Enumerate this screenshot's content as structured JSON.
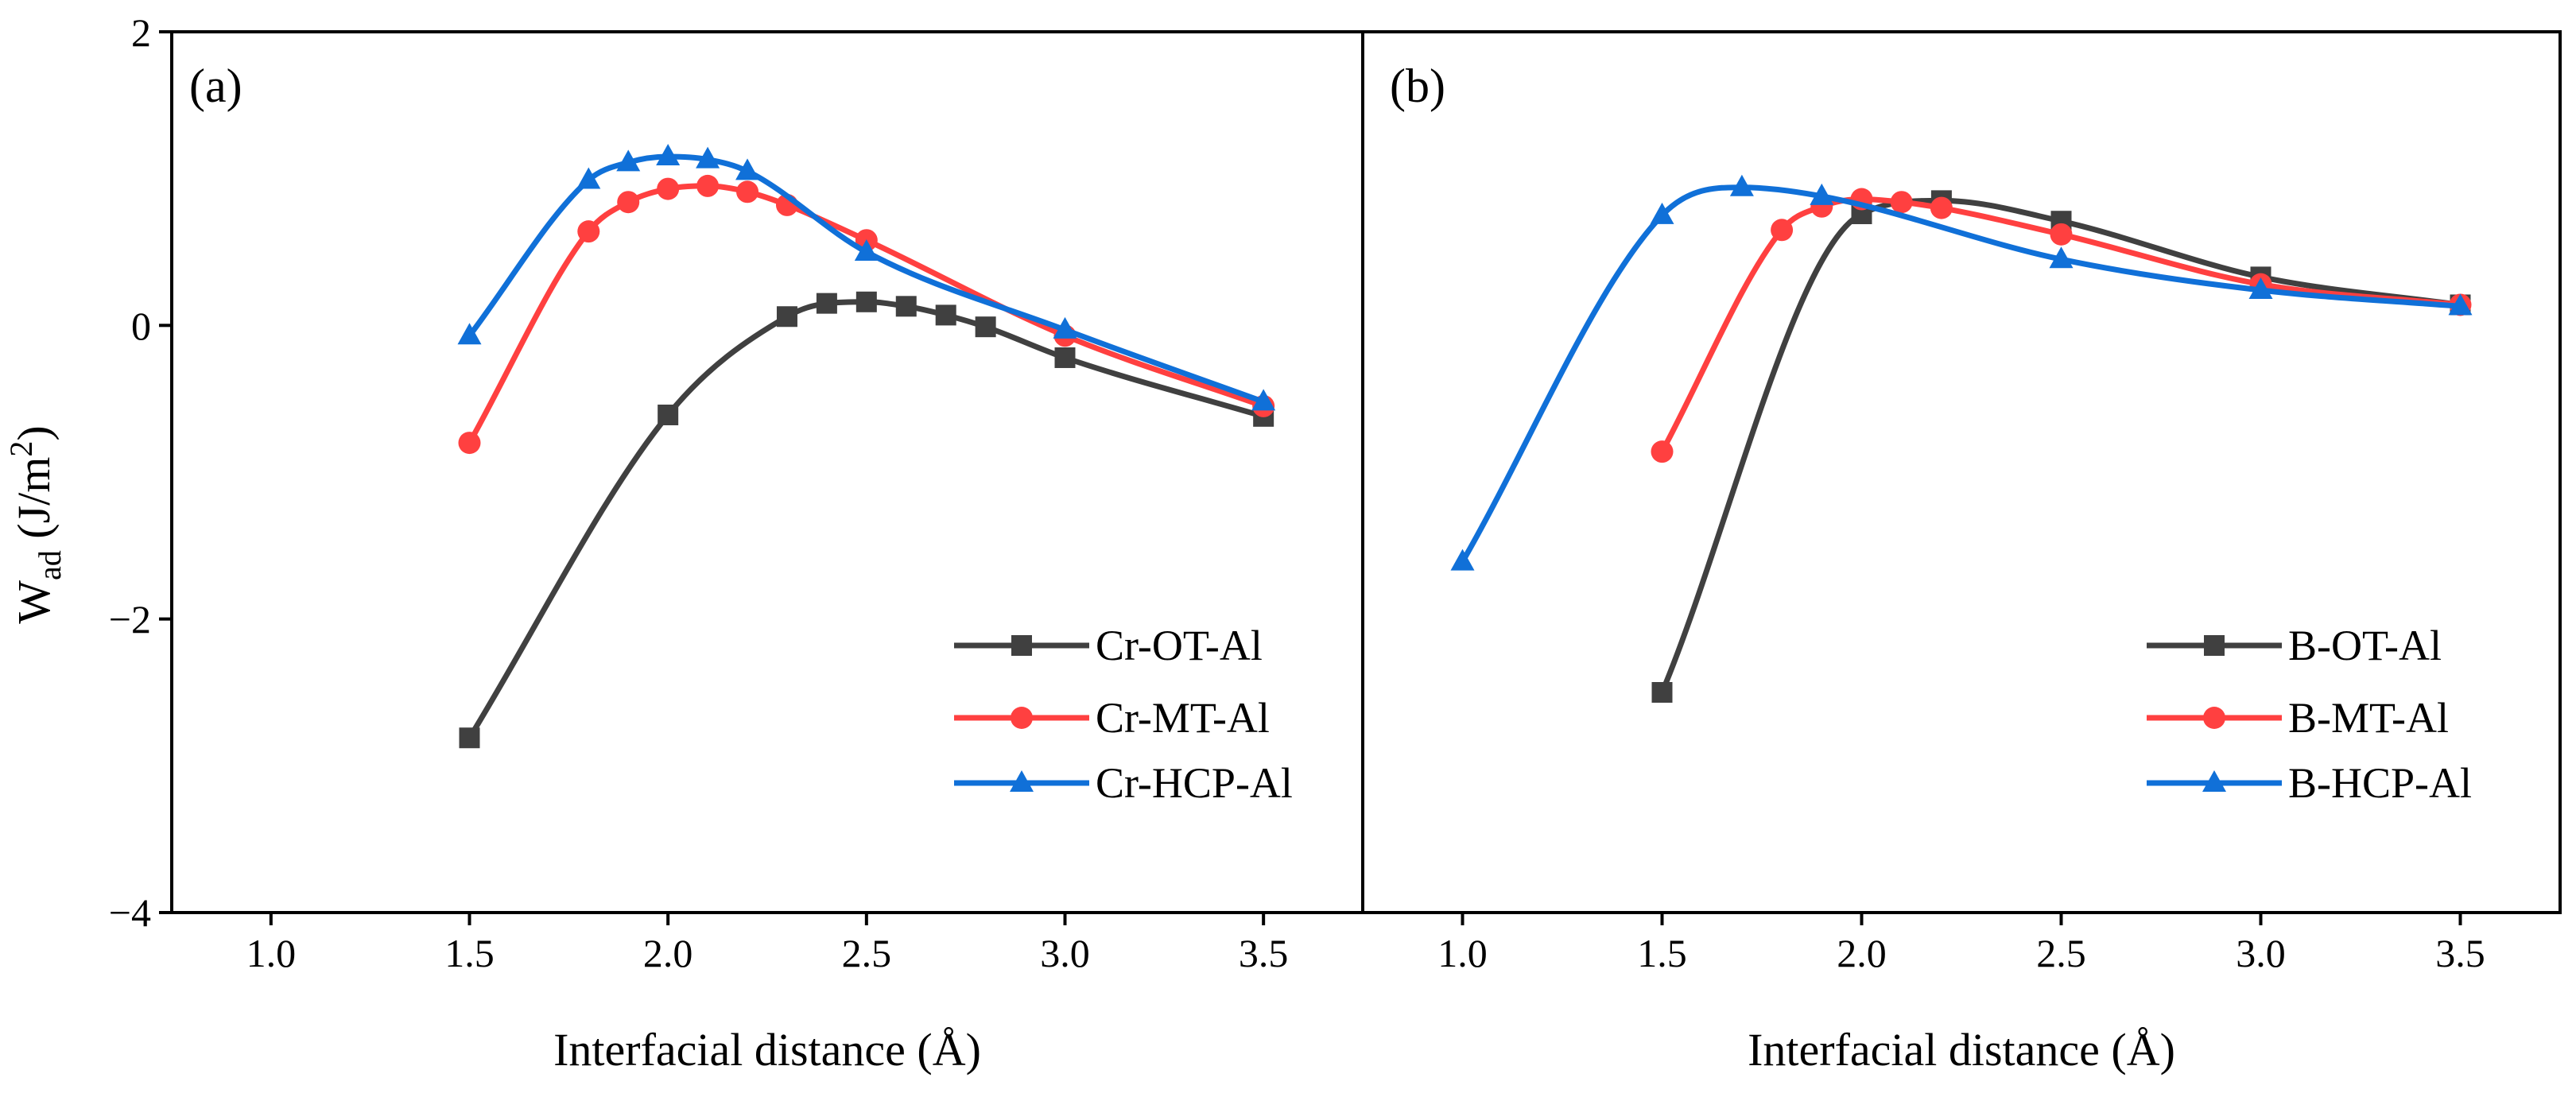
{
  "colors": {
    "ot": "#404040",
    "mt": "#ff4040",
    "hcp": "#1070d8"
  },
  "chart_data": [
    {
      "type": "line",
      "panel_label": "(a)",
      "xlabel": "Interfacial distance (Å)",
      "ylabel_main": "W",
      "ylabel_sub": "ad",
      "ylabel_unit": " (J/m",
      "ylabel_sup": "2",
      "ylabel_close": ")",
      "xlim": [
        0.75,
        3.75
      ],
      "ylim": [
        -4,
        2
      ],
      "xticks": [
        1.0,
        1.5,
        2.0,
        2.5,
        3.0,
        3.5
      ],
      "xtick_labels": [
        "1.0",
        "1.5",
        "2.0",
        "2.5",
        "3.0",
        "3.5"
      ],
      "yticks": [
        2,
        0,
        -2,
        -4
      ],
      "ytick_labels": [
        "2",
        "0",
        "−2",
        "−4"
      ],
      "legend_position": "bottom-right",
      "series": [
        {
          "name": "Cr-OT-Al",
          "color": "#404040",
          "marker": "square",
          "x": [
            1.5,
            2.0,
            2.3,
            2.4,
            2.5,
            2.6,
            2.7,
            2.8,
            3.0,
            3.5
          ],
          "y": [
            -2.81,
            -0.61,
            0.06,
            0.15,
            0.16,
            0.13,
            0.07,
            -0.01,
            -0.22,
            -0.62
          ]
        },
        {
          "name": "Cr-MT-Al",
          "color": "#ff4040",
          "marker": "circle",
          "x": [
            1.5,
            1.8,
            1.9,
            2.0,
            2.1,
            2.2,
            2.3,
            2.5,
            3.0,
            3.5
          ],
          "y": [
            -0.8,
            0.64,
            0.84,
            0.93,
            0.95,
            0.91,
            0.82,
            0.58,
            -0.07,
            -0.55
          ]
        },
        {
          "name": "Cr-HCP-Al",
          "color": "#1070d8",
          "marker": "triangle",
          "x": [
            1.5,
            1.8,
            1.9,
            2.0,
            2.1,
            2.2,
            2.5,
            3.0,
            3.5
          ],
          "y": [
            -0.07,
            0.99,
            1.11,
            1.15,
            1.13,
            1.05,
            0.5,
            -0.03,
            -0.52
          ]
        }
      ]
    },
    {
      "type": "line",
      "panel_label": "(b)",
      "xlabel": "Interfacial distance (Å)",
      "xlim": [
        0.75,
        3.75
      ],
      "ylim": [
        -4,
        2
      ],
      "xticks": [
        1.0,
        1.5,
        2.0,
        2.5,
        3.0,
        3.5
      ],
      "xtick_labels": [
        "1.0",
        "1.5",
        "2.0",
        "2.5",
        "3.0",
        "3.5"
      ],
      "legend_position": "bottom-right",
      "series": [
        {
          "name": "B-OT-Al",
          "color": "#404040",
          "marker": "square",
          "x": [
            1.5,
            2.0,
            2.2,
            2.5,
            3.0,
            3.5
          ],
          "y": [
            -2.5,
            0.76,
            0.85,
            0.71,
            0.33,
            0.14
          ]
        },
        {
          "name": "B-MT-Al",
          "color": "#ff4040",
          "marker": "circle",
          "x": [
            1.5,
            1.8,
            1.9,
            2.0,
            2.1,
            2.2,
            2.5,
            3.0,
            3.5
          ],
          "y": [
            -0.86,
            0.65,
            0.81,
            0.86,
            0.84,
            0.8,
            0.62,
            0.28,
            0.14
          ]
        },
        {
          "name": "B-HCP-Al",
          "color": "#1070d8",
          "marker": "triangle",
          "x": [
            1.0,
            1.5,
            1.7,
            1.9,
            2.5,
            3.0,
            3.5
          ],
          "y": [
            -1.61,
            0.75,
            0.94,
            0.88,
            0.45,
            0.24,
            0.13
          ]
        }
      ]
    }
  ]
}
